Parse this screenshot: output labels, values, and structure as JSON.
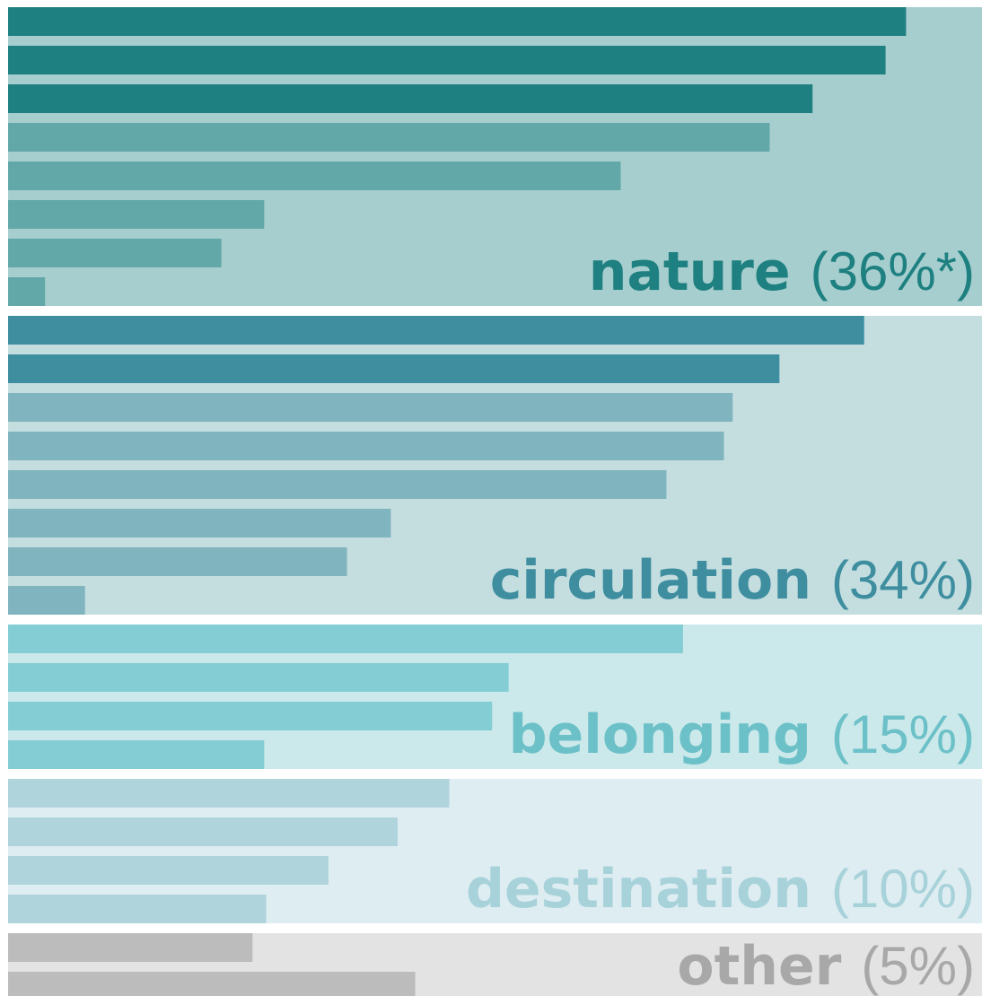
{
  "chart_data": {
    "type": "bar",
    "orientation": "horizontal",
    "groups": [
      {
        "name": "nature",
        "share": "(36%*)",
        "background": "#a7cece",
        "label_color": "#1e8080",
        "values": [
          92.2,
          90.1,
          82.6,
          78.2,
          62.9,
          26.3,
          21.9,
          3.8
        ],
        "colors": [
          "#1e8080",
          "#1e8080",
          "#1e8080",
          "#62a8a8",
          "#62a8a8",
          "#62a8a8",
          "#62a8a8",
          "#62a8a8"
        ]
      },
      {
        "name": "circulation",
        "share": "(34%)",
        "background": "#c4dee0",
        "label_color": "#3e8ea0",
        "values": [
          87.9,
          79.2,
          74.4,
          73.5,
          67.6,
          39.3,
          34.8,
          7.9
        ],
        "colors": [
          "#3e8ea0",
          "#3e8ea0",
          "#80b4be",
          "#80b4be",
          "#80b4be",
          "#80b4be",
          "#80b4be",
          "#80b4be"
        ]
      },
      {
        "name": "belonging",
        "share": "(15%)",
        "background": "#cbe9ea",
        "label_color": "#6cc0c8",
        "values": [
          69.3,
          51.4,
          49.7,
          26.3
        ],
        "colors": [
          "#84cdd4",
          "#84cdd4",
          "#84cdd4",
          "#84cdd4"
        ]
      },
      {
        "name": "destination",
        "share": "(10%)",
        "background": "#deedf1",
        "label_color": "#a8d2da",
        "values": [
          45.3,
          40.0,
          32.9,
          26.5
        ],
        "colors": [
          "#b0d4dc",
          "#b0d4dc",
          "#b0d4dc",
          "#b0d4dc"
        ]
      },
      {
        "name": "other",
        "share": "(5%)",
        "background": "#e3e3e3",
        "label_color": "#a8a8a8",
        "values": [
          25.1,
          41.8
        ],
        "colors": [
          "#bcbcbc",
          "#bcbcbc"
        ]
      }
    ],
    "xlim": [
      0,
      100
    ]
  }
}
